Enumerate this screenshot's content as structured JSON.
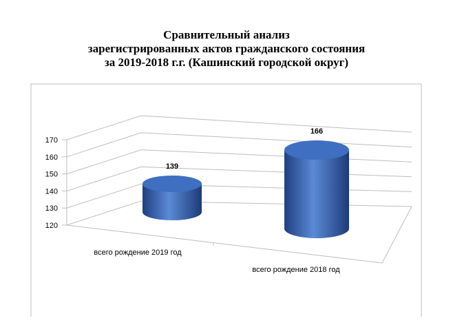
{
  "chart_data": {
    "type": "bar3d-cylinder",
    "title_lines": [
      "Сравнительный анализ",
      "зарегистрированных актов гражданского состояния",
      "за 2019-2018 г.г. (Кашинский городской округ)"
    ],
    "categories": [
      "всего рождение 2019 год",
      "всего рождение 2018 год"
    ],
    "values": [
      139,
      166
    ],
    "color": "#3f6fc0",
    "ylim": [
      120,
      170
    ],
    "yticks": [
      120,
      130,
      140,
      150,
      160,
      170
    ],
    "grid": true
  }
}
